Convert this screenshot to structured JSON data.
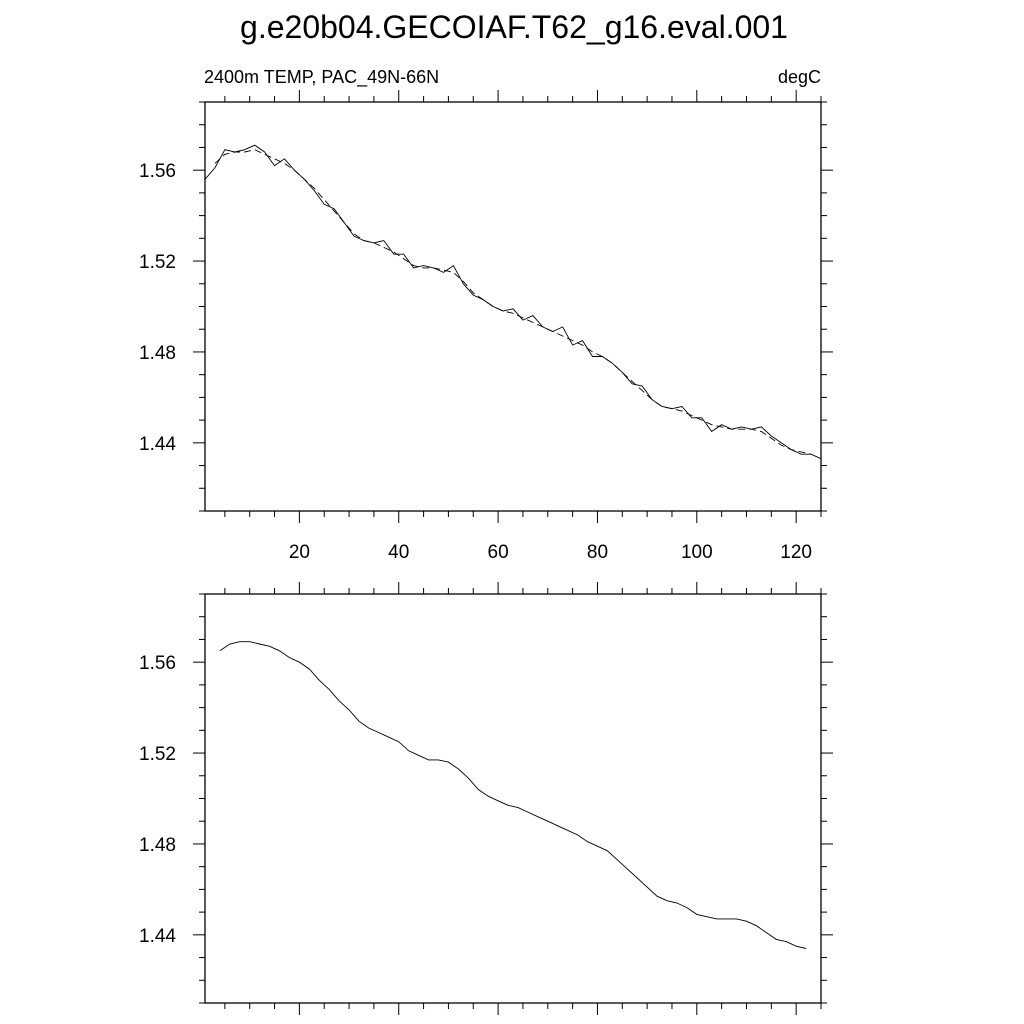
{
  "figure": {
    "title": "g.e20b04.GECOIAF.T62_g16.eval.001",
    "left_label": "2400m TEMP, PAC_49N-66N",
    "right_label": "degC"
  },
  "chart_data": [
    {
      "type": "line",
      "xlim": [
        1,
        125
      ],
      "ylim": [
        1.41,
        1.59
      ],
      "x_major_ticks": [
        20,
        40,
        60,
        80,
        100,
        120
      ],
      "x_tick_labels": [
        "20",
        "40",
        "60",
        "80",
        "100",
        "120"
      ],
      "y_major_ticks": [
        1.44,
        1.48,
        1.52,
        1.56
      ],
      "y_tick_labels": [
        "1.44",
        "1.48",
        "1.52",
        "1.56"
      ],
      "grid": false,
      "series": [
        {
          "style": "solid",
          "points": [
            [
              1,
              1.556
            ],
            [
              3,
              1.561
            ],
            [
              5,
              1.569
            ],
            [
              7,
              1.568
            ],
            [
              9,
              1.569
            ],
            [
              11,
              1.571
            ],
            [
              13,
              1.568
            ],
            [
              15,
              1.562
            ],
            [
              17,
              1.565
            ],
            [
              19,
              1.56
            ],
            [
              21,
              1.556
            ],
            [
              23,
              1.551
            ],
            [
              25,
              1.545
            ],
            [
              27,
              1.543
            ],
            [
              29,
              1.537
            ],
            [
              31,
              1.531
            ],
            [
              33,
              1.529
            ],
            [
              35,
              1.528
            ],
            [
              37,
              1.529
            ],
            [
              39,
              1.523
            ],
            [
              41,
              1.523
            ],
            [
              43,
              1.517
            ],
            [
              45,
              1.518
            ],
            [
              47,
              1.517
            ],
            [
              49,
              1.515
            ],
            [
              51,
              1.518
            ],
            [
              53,
              1.51
            ],
            [
              55,
              1.505
            ],
            [
              57,
              1.503
            ],
            [
              59,
              1.5
            ],
            [
              61,
              1.498
            ],
            [
              63,
              1.499
            ],
            [
              65,
              1.494
            ],
            [
              67,
              1.496
            ],
            [
              69,
              1.491
            ],
            [
              71,
              1.489
            ],
            [
              73,
              1.491
            ],
            [
              75,
              1.483
            ],
            [
              77,
              1.485
            ],
            [
              79,
              1.478
            ],
            [
              81,
              1.478
            ],
            [
              83,
              1.475
            ],
            [
              85,
              1.471
            ],
            [
              87,
              1.466
            ],
            [
              89,
              1.465
            ],
            [
              91,
              1.459
            ],
            [
              93,
              1.456
            ],
            [
              95,
              1.455
            ],
            [
              97,
              1.456
            ],
            [
              99,
              1.451
            ],
            [
              101,
              1.451
            ],
            [
              103,
              1.445
            ],
            [
              105,
              1.448
            ],
            [
              107,
              1.446
            ],
            [
              109,
              1.447
            ],
            [
              111,
              1.446
            ],
            [
              113,
              1.447
            ],
            [
              115,
              1.443
            ],
            [
              117,
              1.44
            ],
            [
              119,
              1.437
            ],
            [
              121,
              1.435
            ],
            [
              123,
              1.435
            ],
            [
              125,
              1.433
            ]
          ]
        },
        {
          "style": "dashed",
          "points": [
            [
              3,
              1.563
            ],
            [
              5,
              1.567
            ],
            [
              7,
              1.568
            ],
            [
              9,
              1.568
            ],
            [
              11,
              1.569
            ],
            [
              13,
              1.567
            ],
            [
              15,
              1.565
            ],
            [
              17,
              1.563
            ],
            [
              19,
              1.56
            ],
            [
              21,
              1.556
            ],
            [
              23,
              1.552
            ],
            [
              25,
              1.547
            ],
            [
              27,
              1.542
            ],
            [
              29,
              1.537
            ],
            [
              31,
              1.532
            ],
            [
              33,
              1.529
            ],
            [
              35,
              1.528
            ],
            [
              37,
              1.526
            ],
            [
              39,
              1.524
            ],
            [
              41,
              1.521
            ],
            [
              43,
              1.518
            ],
            [
              45,
              1.517
            ],
            [
              47,
              1.517
            ],
            [
              49,
              1.516
            ],
            [
              51,
              1.515
            ],
            [
              53,
              1.511
            ],
            [
              55,
              1.506
            ],
            [
              57,
              1.503
            ],
            [
              59,
              1.5
            ],
            [
              61,
              1.498
            ],
            [
              63,
              1.497
            ],
            [
              65,
              1.495
            ],
            [
              67,
              1.493
            ],
            [
              69,
              1.491
            ],
            [
              71,
              1.489
            ],
            [
              73,
              1.487
            ],
            [
              75,
              1.485
            ],
            [
              77,
              1.483
            ],
            [
              79,
              1.48
            ],
            [
              81,
              1.478
            ],
            [
              83,
              1.475
            ],
            [
              85,
              1.471
            ],
            [
              87,
              1.467
            ],
            [
              89,
              1.463
            ],
            [
              91,
              1.459
            ],
            [
              93,
              1.456
            ],
            [
              95,
              1.455
            ],
            [
              97,
              1.454
            ],
            [
              99,
              1.452
            ],
            [
              101,
              1.45
            ],
            [
              103,
              1.448
            ],
            [
              105,
              1.447
            ],
            [
              107,
              1.446
            ],
            [
              109,
              1.446
            ],
            [
              111,
              1.446
            ],
            [
              113,
              1.445
            ],
            [
              115,
              1.442
            ],
            [
              117,
              1.439
            ],
            [
              119,
              1.437
            ],
            [
              121,
              1.436
            ],
            [
              123,
              1.435
            ]
          ]
        }
      ]
    },
    {
      "type": "line",
      "xlim": [
        1,
        125
      ],
      "ylim": [
        1.41,
        1.59
      ],
      "x_major_ticks": [
        20,
        40,
        60,
        80,
        100,
        120
      ],
      "x_tick_labels": [],
      "y_major_ticks": [
        1.44,
        1.48,
        1.52,
        1.56
      ],
      "y_tick_labels": [
        "1.44",
        "1.48",
        "1.52",
        "1.56"
      ],
      "grid": false,
      "series": [
        {
          "style": "solid",
          "points": [
            [
              4,
              1.565
            ],
            [
              6,
              1.568
            ],
            [
              8,
              1.569
            ],
            [
              10,
              1.569
            ],
            [
              12,
              1.568
            ],
            [
              14,
              1.567
            ],
            [
              16,
              1.565
            ],
            [
              18,
              1.562
            ],
            [
              20,
              1.56
            ],
            [
              22,
              1.557
            ],
            [
              24,
              1.552
            ],
            [
              26,
              1.548
            ],
            [
              28,
              1.543
            ],
            [
              30,
              1.539
            ],
            [
              32,
              1.534
            ],
            [
              34,
              1.531
            ],
            [
              36,
              1.529
            ],
            [
              38,
              1.527
            ],
            [
              40,
              1.525
            ],
            [
              42,
              1.521
            ],
            [
              44,
              1.519
            ],
            [
              46,
              1.517
            ],
            [
              48,
              1.517
            ],
            [
              50,
              1.516
            ],
            [
              52,
              1.513
            ],
            [
              54,
              1.509
            ],
            [
              56,
              1.504
            ],
            [
              58,
              1.501
            ],
            [
              60,
              1.499
            ],
            [
              62,
              1.497
            ],
            [
              64,
              1.496
            ],
            [
              66,
              1.494
            ],
            [
              68,
              1.492
            ],
            [
              70,
              1.49
            ],
            [
              72,
              1.488
            ],
            [
              74,
              1.486
            ],
            [
              76,
              1.484
            ],
            [
              78,
              1.481
            ],
            [
              80,
              1.479
            ],
            [
              82,
              1.477
            ],
            [
              84,
              1.473
            ],
            [
              86,
              1.469
            ],
            [
              88,
              1.465
            ],
            [
              90,
              1.461
            ],
            [
              92,
              1.457
            ],
            [
              94,
              1.455
            ],
            [
              96,
              1.454
            ],
            [
              98,
              1.452
            ],
            [
              100,
              1.449
            ],
            [
              102,
              1.448
            ],
            [
              104,
              1.447
            ],
            [
              106,
              1.447
            ],
            [
              108,
              1.447
            ],
            [
              110,
              1.446
            ],
            [
              112,
              1.444
            ],
            [
              114,
              1.441
            ],
            [
              116,
              1.438
            ],
            [
              118,
              1.437
            ],
            [
              120,
              1.435
            ],
            [
              122,
              1.434
            ]
          ]
        }
      ]
    }
  ]
}
